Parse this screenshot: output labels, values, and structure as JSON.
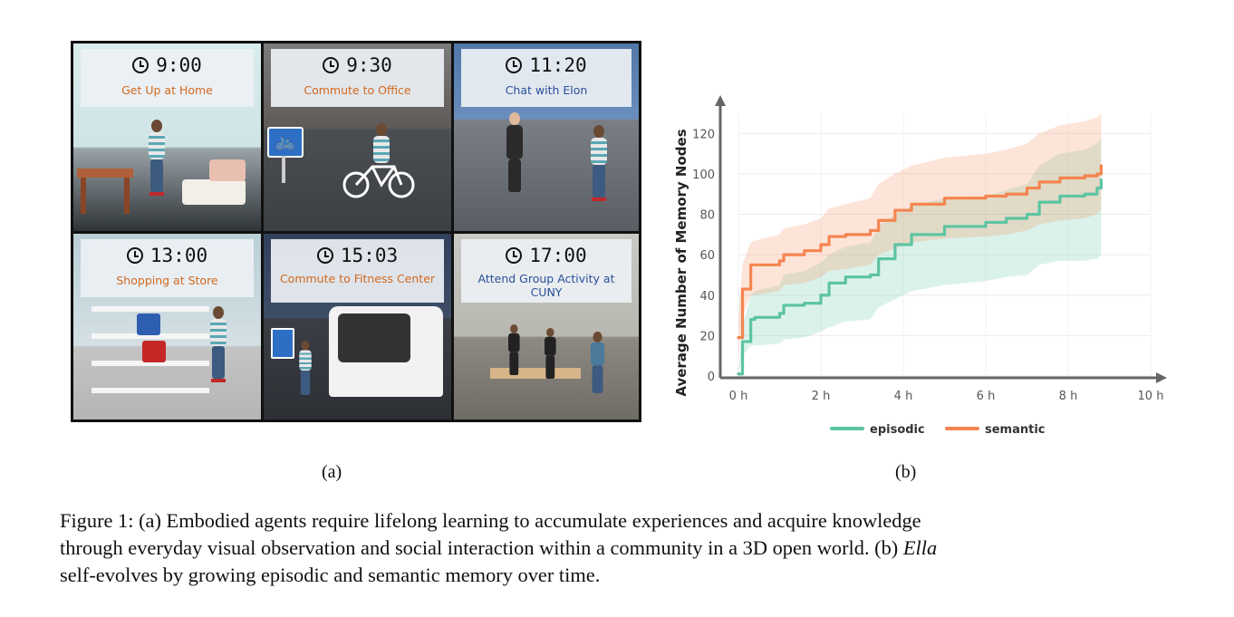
{
  "panel_a": {
    "tiles": [
      {
        "time": "9:00",
        "activity": "Get Up at Home",
        "activity_color": "#d2691e"
      },
      {
        "time": "9:30",
        "activity": "Commute to Office",
        "activity_color": "#d2691e"
      },
      {
        "time": "11:20",
        "activity": "Chat with Elon",
        "activity_color": "#2a4f9a"
      },
      {
        "time": "13:00",
        "activity": "Shopping at Store",
        "activity_color": "#d2691e"
      },
      {
        "time": "15:03",
        "activity": "Commute to Fitness Center",
        "activity_color": "#d2691e"
      },
      {
        "time": "17:00",
        "activity": "Attend Group Activity at CUNY",
        "activity_color": "#2a4f9a"
      }
    ],
    "icons": [
      "clock-icon",
      "bicycle-sign-icon",
      "bus-stop-sign-icon"
    ]
  },
  "labels": {
    "a": "(a)",
    "b": "(b)"
  },
  "caption": {
    "line1": "Figure 1: (a) Embodied agents require lifelong learning to accumulate experiences and acquire knowledge",
    "line2_pre": "through everyday visual observation and social interaction within a community in a 3D open world. (b) ",
    "line2_em": "Ella",
    "line3": "self-evolves by growing episodic and semantic memory over time."
  },
  "chart_data": {
    "type": "line",
    "ylabel": "Average Number of Memory Nodes",
    "xlabel": "",
    "xlim": [
      0,
      10
    ],
    "ylim": [
      0,
      130
    ],
    "x_ticks": [
      "0 h",
      "2 h",
      "4 h",
      "6 h",
      "8 h",
      "10 h"
    ],
    "y_ticks": [
      "0",
      "20",
      "40",
      "60",
      "80",
      "100",
      "120"
    ],
    "legend_position": "bottom",
    "grid": true,
    "x": [
      0,
      0.1,
      0.3,
      0.4,
      1.0,
      1.1,
      1.6,
      2.0,
      2.2,
      2.6,
      3.2,
      3.4,
      3.8,
      4.2,
      5.0,
      6.0,
      6.5,
      7.0,
      7.3,
      7.8,
      8.4,
      8.7,
      8.8
    ],
    "series": [
      {
        "name": "episodic",
        "color": "#5cc4a1",
        "values": [
          1,
          17,
          28,
          29,
          31,
          35,
          36,
          40,
          46,
          49,
          50,
          58,
          65,
          70,
          74,
          76,
          78,
          80,
          86,
          89,
          90,
          93,
          97
        ],
        "lower": [
          0,
          10,
          15,
          15,
          16,
          18,
          19,
          22,
          24,
          27,
          28,
          34,
          38,
          42,
          45,
          47,
          49,
          50,
          55,
          57,
          57,
          58,
          60
        ],
        "upper": [
          2,
          25,
          40,
          42,
          45,
          50,
          52,
          56,
          60,
          64,
          66,
          74,
          80,
          84,
          88,
          89,
          92,
          95,
          104,
          110,
          112,
          115,
          118
        ]
      },
      {
        "name": "semantic",
        "color": "#f4854f",
        "values": [
          19,
          43,
          55,
          55,
          57,
          60,
          62,
          65,
          69,
          70,
          72,
          77,
          82,
          85,
          88,
          89,
          90,
          93,
          96,
          98,
          99,
          100,
          104
        ],
        "lower": [
          10,
          30,
          40,
          40,
          42,
          45,
          46,
          49,
          52,
          53,
          55,
          60,
          63,
          66,
          68,
          69,
          70,
          72,
          75,
          77,
          78,
          80,
          82
        ],
        "upper": [
          30,
          55,
          66,
          67,
          70,
          73,
          75,
          78,
          83,
          85,
          88,
          95,
          100,
          104,
          108,
          110,
          112,
          115,
          120,
          124,
          126,
          128,
          130
        ]
      }
    ]
  }
}
